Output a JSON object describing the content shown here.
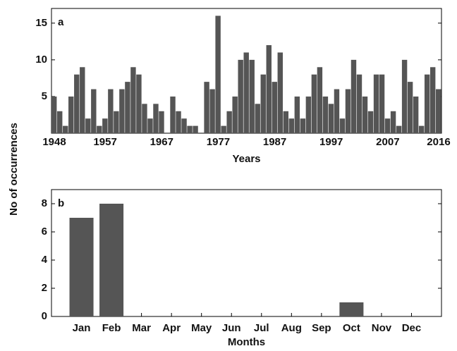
{
  "chart_data": [
    {
      "type": "bar",
      "panel_label": "a",
      "x_label": "Years",
      "y_label": "No of occurrences",
      "color": "#555555",
      "x": [
        1948,
        1949,
        1950,
        1951,
        1952,
        1953,
        1954,
        1955,
        1956,
        1957,
        1958,
        1959,
        1960,
        1961,
        1962,
        1963,
        1964,
        1965,
        1966,
        1967,
        1968,
        1969,
        1970,
        1971,
        1972,
        1973,
        1974,
        1975,
        1976,
        1977,
        1978,
        1979,
        1980,
        1981,
        1982,
        1983,
        1984,
        1985,
        1986,
        1987,
        1988,
        1989,
        1990,
        1991,
        1992,
        1993,
        1994,
        1995,
        1996,
        1997,
        1998,
        1999,
        2000,
        2001,
        2002,
        2003,
        2004,
        2005,
        2006,
        2007,
        2008,
        2009,
        2010,
        2011,
        2012,
        2013,
        2014,
        2015,
        2016
      ],
      "values": [
        5,
        3,
        1,
        5,
        8,
        9,
        2,
        6,
        1,
        2,
        6,
        3,
        6,
        7,
        9,
        8,
        4,
        2,
        4,
        3,
        0,
        5,
        3,
        2,
        1,
        1,
        0,
        7,
        6,
        16,
        1,
        3,
        5,
        10,
        11,
        10,
        4,
        8,
        12,
        7,
        11,
        3,
        2,
        5,
        2,
        5,
        8,
        9,
        5,
        4,
        6,
        2,
        6,
        10,
        8,
        5,
        3,
        8,
        8,
        2,
        3,
        1,
        10,
        7,
        5,
        1,
        8,
        9,
        6
      ],
      "xlim": [
        1947.5,
        2016.5
      ],
      "xticks": [
        1948,
        1957,
        1967,
        1977,
        1987,
        1997,
        2007,
        2016
      ],
      "ylim": [
        0,
        17
      ],
      "yticks": [
        5,
        10,
        15
      ]
    },
    {
      "type": "bar",
      "panel_label": "b",
      "x_label": "Months",
      "color": "#555555",
      "categories": [
        "Jan",
        "Feb",
        "Mar",
        "Apr",
        "May",
        "Jun",
        "Jul",
        "Aug",
        "Sep",
        "Oct",
        "Nov",
        "Dec"
      ],
      "values": [
        7,
        8,
        0,
        0,
        0,
        0,
        0,
        0,
        0,
        1,
        0,
        0
      ],
      "ylim": [
        0,
        9
      ],
      "yticks": [
        0,
        2,
        4,
        6,
        8
      ]
    }
  ]
}
